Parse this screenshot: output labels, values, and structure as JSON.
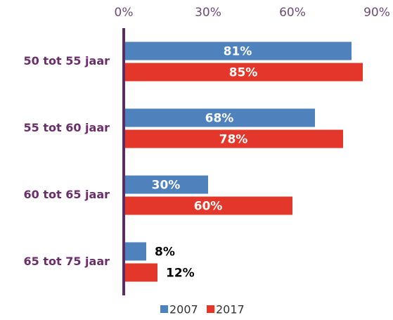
{
  "chart_data": {
    "type": "hbar",
    "categories": [
      "50 tot 55 jaar",
      "55 tot 60 jaar",
      "60 tot 65 jaar",
      "65 tot 75 jaar"
    ],
    "series": [
      {
        "name": "2007",
        "color": "#4f81bd",
        "values": [
          81,
          68,
          30,
          8
        ],
        "value_labels": [
          "81%",
          "68%",
          "30%",
          "8%"
        ]
      },
      {
        "name": "2017",
        "color": "#e2372a",
        "values": [
          85,
          78,
          60,
          12
        ],
        "value_labels": [
          "85%",
          "78%",
          "60%",
          "12%"
        ]
      }
    ],
    "xlim": [
      0,
      90
    ],
    "xticks": [
      {
        "value": 0,
        "label": "0%"
      },
      {
        "value": 30,
        "label": "30%"
      },
      {
        "value": 60,
        "label": "60%"
      },
      {
        "value": 90,
        "label": "90%"
      }
    ],
    "legend": "bottom"
  }
}
